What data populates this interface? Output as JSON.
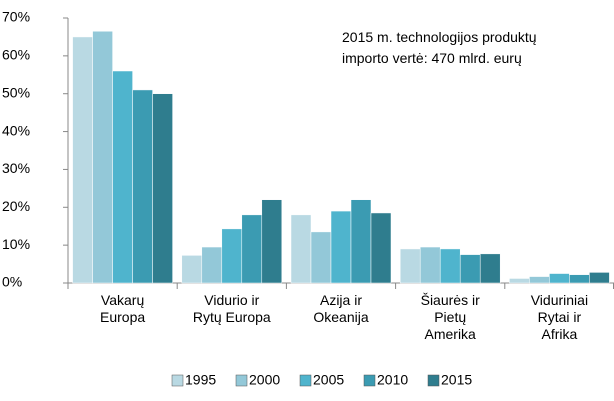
{
  "chart_data": {
    "type": "bar",
    "annotation": "2015 m. technologijos produktų\nimporto vertė: 470 mlrd. eurų",
    "categories": [
      "Vakarų\nEuropa",
      "Vidurio ir\nRytų Europa",
      "Azija ir\nOkeanija",
      "Šiaurės ir\nPietų\nAmerika",
      "Viduriniai\nRytai ir\nAfrika"
    ],
    "series": [
      {
        "name": "1995",
        "color": "#b9d9e3",
        "values": [
          65,
          7.3,
          18,
          9,
          1.2
        ]
      },
      {
        "name": "2000",
        "color": "#93c8d8",
        "values": [
          66.5,
          9.5,
          13.5,
          9.5,
          1.7
        ]
      },
      {
        "name": "2005",
        "color": "#4fb4cd",
        "values": [
          56,
          14.3,
          19,
          9,
          2.5
        ]
      },
      {
        "name": "2010",
        "color": "#3b9bb2",
        "values": [
          51,
          18,
          22,
          7.5,
          2.2
        ]
      },
      {
        "name": "2015",
        "color": "#2f7d8e",
        "values": [
          50,
          22,
          18.5,
          7.7,
          2.8
        ]
      }
    ],
    "ylim": [
      0,
      70
    ],
    "yticks": [
      {
        "value": 0,
        "label": "0%"
      },
      {
        "value": 10,
        "label": "10%"
      },
      {
        "value": 20,
        "label": "20%"
      },
      {
        "value": 30,
        "label": "30%"
      },
      {
        "value": 40,
        "label": "40%"
      },
      {
        "value": 50,
        "label": "50%"
      },
      {
        "value": 60,
        "label": "60%"
      },
      {
        "value": 70,
        "label": "70%"
      }
    ],
    "grid": false,
    "legend": "bottom"
  }
}
